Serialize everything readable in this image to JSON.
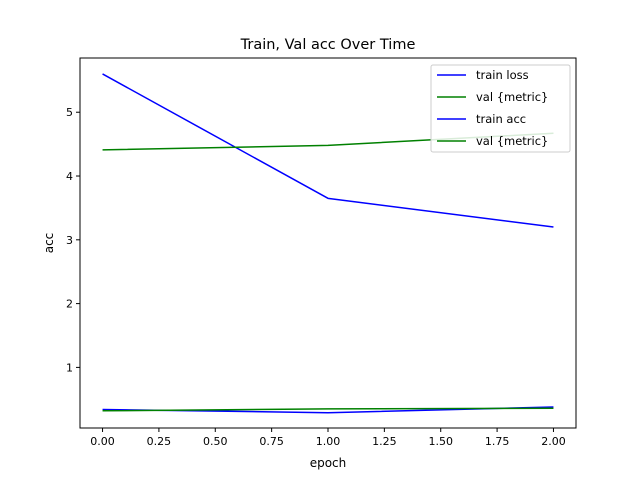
{
  "chart_data": {
    "type": "line",
    "title": "Train, Val acc Over Time",
    "xlabel": "epoch",
    "ylabel": "acc",
    "xlim": [
      -0.1,
      2.1
    ],
    "ylim": [
      0.05,
      5.85
    ],
    "xticks": [
      "0.00",
      "0.25",
      "0.50",
      "0.75",
      "1.00",
      "1.25",
      "1.50",
      "1.75",
      "2.00"
    ],
    "xtick_values": [
      0,
      0.25,
      0.5,
      0.75,
      1.0,
      1.25,
      1.5,
      1.75,
      2.0
    ],
    "yticks": [
      "1",
      "2",
      "3",
      "4",
      "5"
    ],
    "ytick_values": [
      1,
      2,
      3,
      4,
      5
    ],
    "grid": false,
    "legend_position": "top-right",
    "series": [
      {
        "name": "train loss",
        "color": "#0000ff",
        "x": [
          0,
          1,
          2
        ],
        "y": [
          5.6,
          3.65,
          3.2
        ]
      },
      {
        "name": "val {metric}",
        "color": "#008000",
        "x": [
          0,
          1,
          2
        ],
        "y": [
          4.41,
          4.48,
          4.67
        ]
      },
      {
        "name": "train acc",
        "color": "#0000ff",
        "x": [
          0,
          1,
          2
        ],
        "y": [
          0.34,
          0.29,
          0.38
        ]
      },
      {
        "name": "val {metric}",
        "color": "#008000",
        "x": [
          0,
          1,
          2
        ],
        "y": [
          0.32,
          0.35,
          0.36
        ]
      }
    ]
  }
}
